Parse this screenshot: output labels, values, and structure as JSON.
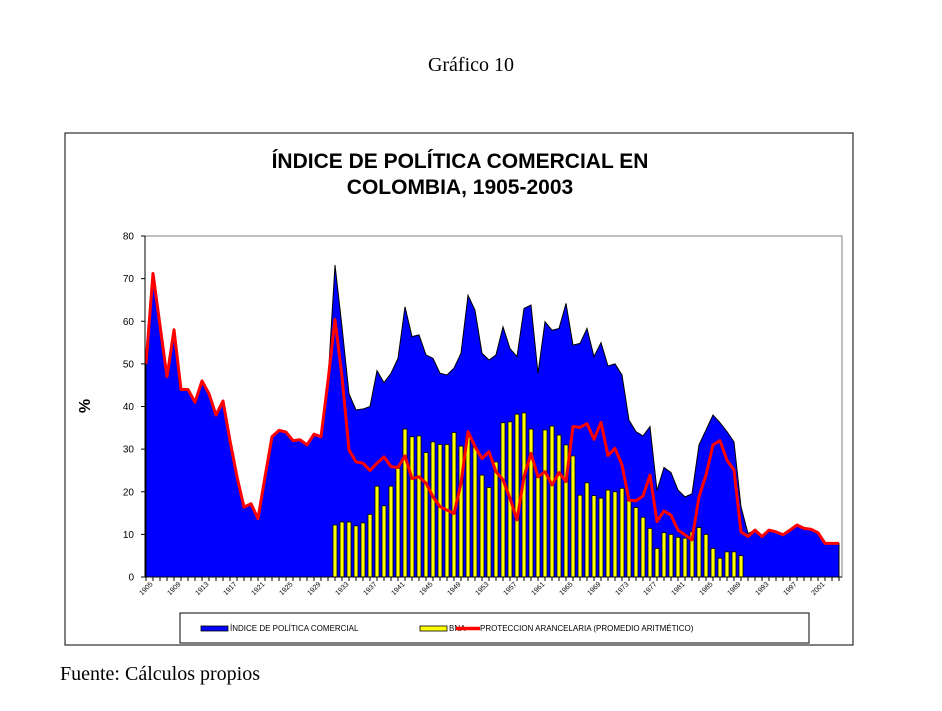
{
  "caption": "Gráfico 10",
  "source": "Fuente: Cálculos propios",
  "chart_data": {
    "type": "area+bar+line",
    "title_lines": [
      "ÍNDICE DE POLÍTICA  COMERCIAL EN",
      "COLOMBIA, 1905-2003"
    ],
    "ylabel": "%",
    "xlabel": "",
    "ylim": [
      0,
      80
    ],
    "yticks": [
      0,
      10,
      20,
      30,
      40,
      50,
      60,
      70,
      80
    ],
    "x_first_year": 1905,
    "xticklabels": [
      "1905",
      "1909",
      "1913",
      "1917",
      "1921",
      "1925",
      "1929",
      "1933",
      "1937",
      "1941",
      "1945",
      "1949",
      "1953",
      "1957",
      "1961",
      "1965",
      "1969",
      "1973",
      "1977",
      "1981",
      "1985",
      "1989",
      "1993",
      "1997",
      "2001"
    ],
    "grid": false,
    "legend_position": "bottom",
    "colors": {
      "index": "#0000ff",
      "bna": "#ffff00",
      "protection": "#ff0000"
    },
    "series": [
      {
        "name": "ÍNDICE DE POLÍTICA COMERCIAL",
        "type": "area",
        "start_year": 1905,
        "values": [
          50,
          71.2,
          59,
          47,
          58,
          44,
          44,
          41,
          46,
          43,
          38,
          41.3,
          32,
          23.5,
          16.4,
          17.2,
          13.7,
          23.5,
          32.9,
          34.4,
          34,
          32,
          32.2,
          31,
          33.5,
          32.9,
          46,
          73.2,
          58.7,
          43,
          39.2,
          39.4,
          40,
          48.4,
          45.6,
          47.8,
          51.3,
          63.4,
          56.4,
          56.8,
          52.1,
          51.3,
          47.8,
          47.4,
          49,
          52.5,
          66.1,
          62.6,
          52.5,
          50.9,
          52.1,
          58.7,
          53.6,
          51.7,
          63,
          63.8,
          47.8,
          59.9,
          57.9,
          58.3,
          64.2,
          54.4,
          54.8,
          58.3,
          51.7,
          55,
          49.5,
          50,
          47.4,
          36.8,
          34.1,
          33.1,
          35.3,
          20.3,
          25.7,
          24.5,
          20.4,
          18.8,
          19.5,
          31,
          34.5,
          38,
          36.2,
          34.1,
          31.7,
          16.5,
          10.2,
          11,
          9.5,
          11,
          10.6,
          9.9,
          11,
          12.2,
          11.4,
          11.2,
          10.4,
          7.9,
          7.9,
          7.9
        ]
      },
      {
        "name": "BNA",
        "type": "bar",
        "start_year": 1932,
        "values": [
          12.2,
          12.9,
          12.9,
          12,
          12.7,
          14.7,
          21.3,
          16.7,
          21.3,
          25.5,
          34.7,
          32.9,
          33.1,
          29.2,
          31.7,
          31.1,
          31.1,
          33.9,
          30.7,
          33.1,
          30.6,
          23.9,
          21,
          27,
          36.2,
          36.4,
          38.2,
          38.5,
          34.7,
          23.4,
          34.5,
          35.4,
          33.3,
          31,
          28.4,
          19.2,
          22.1,
          19.1,
          18.5,
          20.4,
          20,
          20.8,
          18,
          16.3,
          14,
          11.4,
          6.7,
          10.4,
          10,
          9.3,
          9.1,
          10.6,
          11.6,
          10,
          6.7,
          4.4,
          5.9,
          5.9,
          5
        ]
      },
      {
        "name": "PROTECCION ARANCELARIA (PROMEDIO ARITMÉTICO)",
        "type": "line",
        "start_year": 1905,
        "values": [
          50,
          71.2,
          59,
          47,
          58,
          44,
          44,
          41,
          46,
          43,
          38,
          41.3,
          32,
          23.5,
          16.4,
          17.2,
          13.7,
          23.5,
          32.9,
          34.4,
          34,
          32,
          32.2,
          31,
          33.5,
          32.9,
          46,
          60.4,
          47,
          29.8,
          27,
          26.7,
          25,
          26.7,
          28.2,
          25.9,
          25.7,
          28.4,
          23.1,
          23.5,
          22,
          18.8,
          16.5,
          15.7,
          14.9,
          22,
          34.1,
          30.6,
          27.8,
          29.4,
          24.7,
          22.8,
          18.5,
          13.4,
          23.5,
          29,
          23.5,
          24.7,
          21.6,
          24.5,
          22.4,
          35.3,
          35.1,
          36,
          32.3,
          36.3,
          28.5,
          30.2,
          26.3,
          18,
          17.9,
          19,
          23.9,
          13,
          15.5,
          14.5,
          11,
          9.9,
          8.7,
          18.8,
          23.9,
          31,
          32,
          27.4,
          25.1,
          10.6,
          9.5,
          11,
          9.5,
          11,
          10.6,
          9.9,
          11,
          12.2,
          11.4,
          11.2,
          10.4,
          7.9,
          7.9,
          7.9
        ]
      }
    ]
  }
}
